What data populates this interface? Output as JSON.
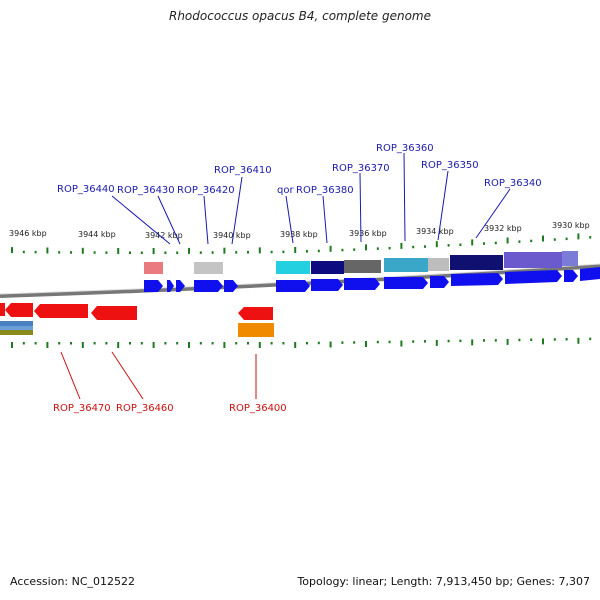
{
  "title": "Rhodococcus opacus B4, complete genome",
  "footer": {
    "accession": "Accession: NC_012522",
    "summary": "Topology: linear; Length: 7,913,450 bp; Genes: 7,307"
  },
  "colors": {
    "forward_label": "#1a1ab0",
    "reverse_label": "#cc1111",
    "forward_gene": "#1010ee",
    "reverse_gene": "#ee1111",
    "tick": "#1f7a1f"
  },
  "scale_labels": [
    "3946 kbp",
    "3944 kbp",
    "3942 kbp",
    "3940 kbp",
    "3938 kbp",
    "3936 kbp",
    "3934 kbp",
    "3932 kbp",
    "3930 kbp"
  ],
  "forward_gene_labels": [
    "ROP_36440",
    "ROP_36430",
    "ROP_36420",
    "ROP_36410",
    "qor",
    "ROP_36380",
    "ROP_36370",
    "ROP_36360",
    "ROP_36350",
    "ROP_36340"
  ],
  "reverse_gene_labels": [
    "ROP_36470",
    "ROP_36460",
    "ROP_36400"
  ]
}
